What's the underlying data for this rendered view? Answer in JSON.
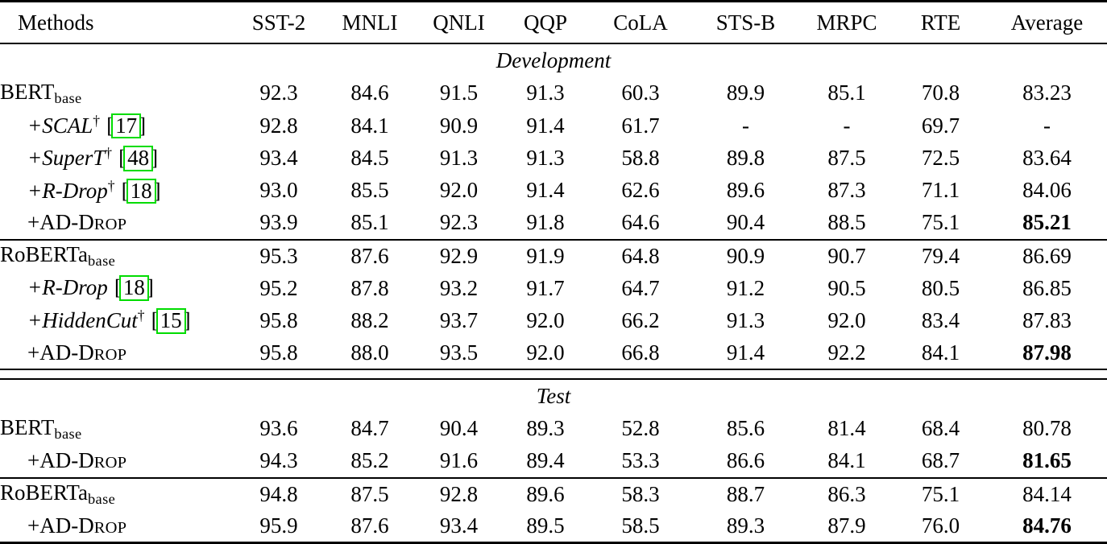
{
  "page": {
    "background": "#ffffff",
    "text_color": "#000000"
  },
  "colors": {
    "citation_box": "#00dc00"
  },
  "table": {
    "columns": [
      "Methods",
      "SST-2",
      "MNLI",
      "QNLI",
      "QQP",
      "CoLA",
      "STS-B",
      "MRPC",
      "RTE",
      "Average"
    ],
    "sections": [
      {
        "title": "Development",
        "groups": [
          {
            "rows": [
              {
                "method": {
                  "parts": [
                    {
                      "t": "BERT"
                    },
                    {
                      "t": "base",
                      "s": "sub"
                    }
                  ]
                },
                "values": [
                  "92.3",
                  "84.6",
                  "91.5",
                  "91.3",
                  "60.3",
                  "89.9",
                  "85.1",
                  "70.8",
                  "83.23"
                ],
                "bold_avg": false
              },
              {
                "method": {
                  "parts": [
                    {
                      "t": "+SCAL",
                      "s": "it"
                    },
                    {
                      "t": "†",
                      "s": "sup"
                    },
                    {
                      "t": "[",
                      "s": "brl"
                    },
                    {
                      "t": "17",
                      "s": "cite"
                    },
                    {
                      "t": "]",
                      "s": "br"
                    }
                  ]
                },
                "values": [
                  "92.8",
                  "84.1",
                  "90.9",
                  "91.4",
                  "61.7",
                  "-",
                  "-",
                  "69.7",
                  "-"
                ],
                "bold_avg": false
              },
              {
                "method": {
                  "parts": [
                    {
                      "t": "+SuperT",
                      "s": "it"
                    },
                    {
                      "t": "†",
                      "s": "sup"
                    },
                    {
                      "t": "[",
                      "s": "brl"
                    },
                    {
                      "t": "48",
                      "s": "cite"
                    },
                    {
                      "t": "]",
                      "s": "br"
                    }
                  ]
                },
                "values": [
                  "93.4",
                  "84.5",
                  "91.3",
                  "91.3",
                  "58.8",
                  "89.8",
                  "87.5",
                  "72.5",
                  "83.64"
                ],
                "bold_avg": false
              },
              {
                "method": {
                  "parts": [
                    {
                      "t": "+R-Drop",
                      "s": "it"
                    },
                    {
                      "t": "†",
                      "s": "sup"
                    },
                    {
                      "t": "[",
                      "s": "brl"
                    },
                    {
                      "t": "18",
                      "s": "cite"
                    },
                    {
                      "t": "]",
                      "s": "br"
                    }
                  ]
                },
                "values": [
                  "93.0",
                  "85.5",
                  "92.0",
                  "91.4",
                  "62.6",
                  "89.6",
                  "87.3",
                  "71.1",
                  "84.06"
                ],
                "bold_avg": false
              },
              {
                "method": {
                  "parts": [
                    {
                      "t": "+AD-D"
                    },
                    {
                      "t": "ROP",
                      "s": "sc"
                    }
                  ]
                },
                "values": [
                  "93.9",
                  "85.1",
                  "92.3",
                  "91.8",
                  "64.6",
                  "90.4",
                  "88.5",
                  "75.1",
                  "85.21"
                ],
                "bold_avg": true
              }
            ]
          },
          {
            "rows": [
              {
                "method": {
                  "parts": [
                    {
                      "t": "RoBERTa"
                    },
                    {
                      "t": "base",
                      "s": "sub"
                    }
                  ]
                },
                "values": [
                  "95.3",
                  "87.6",
                  "92.9",
                  "91.9",
                  "64.8",
                  "90.9",
                  "90.7",
                  "79.4",
                  "86.69"
                ],
                "bold_avg": false
              },
              {
                "method": {
                  "parts": [
                    {
                      "t": "+R-Drop",
                      "s": "it"
                    },
                    {
                      "t": "[",
                      "s": "brl"
                    },
                    {
                      "t": "18",
                      "s": "cite"
                    },
                    {
                      "t": "]",
                      "s": "br"
                    }
                  ]
                },
                "values": [
                  "95.2",
                  "87.8",
                  "93.2",
                  "91.7",
                  "64.7",
                  "91.2",
                  "90.5",
                  "80.5",
                  "86.85"
                ],
                "bold_avg": false
              },
              {
                "method": {
                  "parts": [
                    {
                      "t": "+HiddenCut",
                      "s": "it"
                    },
                    {
                      "t": "†",
                      "s": "sup"
                    },
                    {
                      "t": "[",
                      "s": "brl"
                    },
                    {
                      "t": "15",
                      "s": "cite"
                    },
                    {
                      "t": "]",
                      "s": "br"
                    }
                  ]
                },
                "values": [
                  "95.8",
                  "88.2",
                  "93.7",
                  "92.0",
                  "66.2",
                  "91.3",
                  "92.0",
                  "83.4",
                  "87.83"
                ],
                "bold_avg": false
              },
              {
                "method": {
                  "parts": [
                    {
                      "t": "+AD-D"
                    },
                    {
                      "t": "ROP",
                      "s": "sc"
                    }
                  ]
                },
                "values": [
                  "95.8",
                  "88.0",
                  "93.5",
                  "92.0",
                  "66.8",
                  "91.4",
                  "92.2",
                  "84.1",
                  "87.98"
                ],
                "bold_avg": true
              }
            ]
          }
        ]
      },
      {
        "title": "Test",
        "groups": [
          {
            "rows": [
              {
                "method": {
                  "parts": [
                    {
                      "t": "BERT"
                    },
                    {
                      "t": "base",
                      "s": "sub"
                    }
                  ]
                },
                "values": [
                  "93.6",
                  "84.7",
                  "90.4",
                  "89.3",
                  "52.8",
                  "85.6",
                  "81.4",
                  "68.4",
                  "80.78"
                ],
                "bold_avg": false
              },
              {
                "method": {
                  "parts": [
                    {
                      "t": "+AD-D"
                    },
                    {
                      "t": "ROP",
                      "s": "sc"
                    }
                  ]
                },
                "values": [
                  "94.3",
                  "85.2",
                  "91.6",
                  "89.4",
                  "53.3",
                  "86.6",
                  "84.1",
                  "68.7",
                  "81.65"
                ],
                "bold_avg": true
              }
            ]
          },
          {
            "rows": [
              {
                "method": {
                  "parts": [
                    {
                      "t": "RoBERTa"
                    },
                    {
                      "t": "base",
                      "s": "sub"
                    }
                  ]
                },
                "values": [
                  "94.8",
                  "87.5",
                  "92.8",
                  "89.6",
                  "58.3",
                  "88.7",
                  "86.3",
                  "75.1",
                  "84.14"
                ],
                "bold_avg": false
              },
              {
                "method": {
                  "parts": [
                    {
                      "t": "+AD-D"
                    },
                    {
                      "t": "ROP",
                      "s": "sc"
                    }
                  ]
                },
                "values": [
                  "95.9",
                  "87.6",
                  "93.4",
                  "89.5",
                  "58.5",
                  "89.3",
                  "87.9",
                  "76.0",
                  "84.76"
                ],
                "bold_avg": true
              }
            ]
          }
        ]
      }
    ]
  }
}
